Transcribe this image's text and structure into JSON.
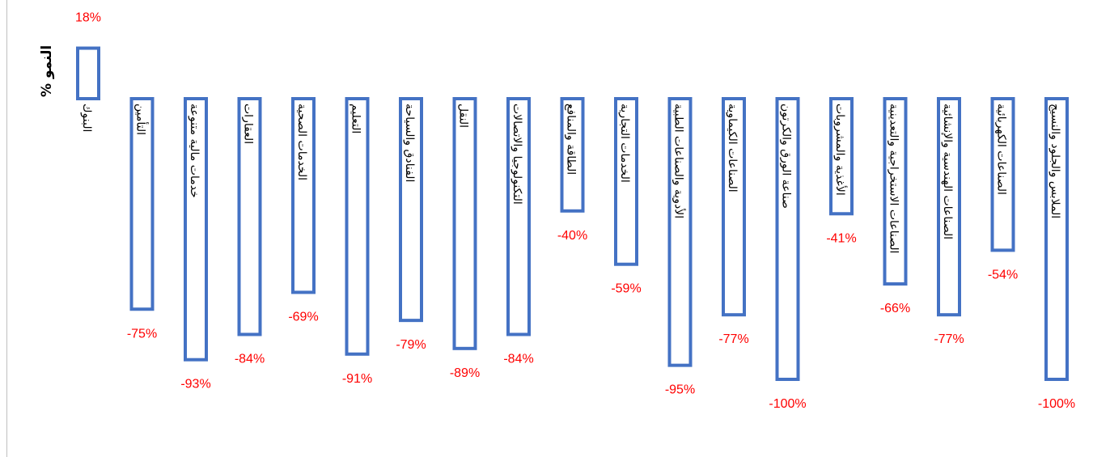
{
  "chart_data": {
    "type": "bar",
    "ylabel": "% النمو",
    "ylim": [
      -100,
      18
    ],
    "grid": false,
    "colors": {
      "bar_stroke": "#4472C4",
      "label": "#FF0000"
    },
    "categories": [
      "البنوك",
      "التأمين",
      "خدمات مالية متنوعة",
      "العقارات",
      "الخدمات الصحية",
      "التعليم",
      "الفنادق والسياحة",
      "النقل",
      "التكنولوجيا والاتصالات",
      "الطاقة والمنافع",
      "الخدمات التجارية",
      "الأدوية والصناعات الطبية",
      "الصناعات الكيماوية",
      "صناعة الورق والكرتون",
      "الأغذية والمشروبات",
      "الصناعات الاستخراجية والتعدينية",
      "الصناعات الهندسية والإنشائية",
      "الصناعات الكهربائية",
      "الملابس والجلود والنسيج"
    ],
    "values": [
      18,
      -75,
      -93,
      -84,
      -69,
      -91,
      -79,
      -89,
      -84,
      -40,
      -59,
      -95,
      -77,
      -100,
      -41,
      -66,
      -77,
      -54,
      -100
    ],
    "data_labels": [
      "18%",
      "-75%",
      "-93%",
      "-84%",
      "-69%",
      "-91%",
      "-79%",
      "-89%",
      "-84%",
      "-40%",
      "-59%",
      "-95%",
      "-77%",
      "-100%",
      "-41%",
      "-66%",
      "-77%",
      "-54%",
      "-100%"
    ]
  }
}
